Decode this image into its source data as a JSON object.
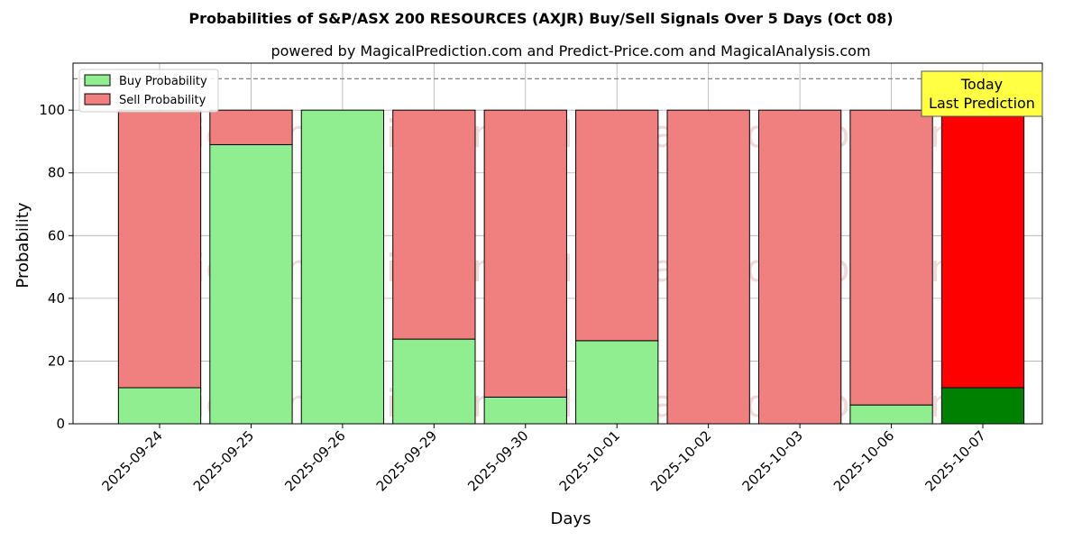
{
  "chart_data": {
    "type": "bar",
    "stacked": true,
    "title": "Probabilities of S&P/ASX 200 RESOURCES (AXJR) Buy/Sell Signals Over 5 Days (Oct 08)",
    "subtitle": "powered by MagicalPrediction.com and Predict-Price.com and MagicalAnalysis.com",
    "xlabel": "Days",
    "ylabel": "Probability",
    "ylim": [
      0,
      115
    ],
    "yticks": [
      0,
      20,
      40,
      60,
      80,
      100
    ],
    "grid": true,
    "legend_position": "top-left",
    "reference_line": 110,
    "categories": [
      "2025-09-24",
      "2025-09-25",
      "2025-09-26",
      "2025-09-29",
      "2025-09-30",
      "2025-10-01",
      "2025-10-02",
      "2025-10-03",
      "2025-10-06",
      "2025-10-07"
    ],
    "series": [
      {
        "name": "Buy Probability",
        "values": [
          11.5,
          89,
          100,
          27,
          8.5,
          26.5,
          0,
          0,
          6,
          11.5
        ],
        "color": "#90ee90",
        "highlight_color": "#008000"
      },
      {
        "name": "Sell Probability",
        "values": [
          88.5,
          11,
          0,
          73,
          91.5,
          73.5,
          100,
          100,
          94,
          88.5
        ],
        "color": "#f08080",
        "highlight_color": "#ff0000"
      }
    ],
    "highlight_index": 9,
    "annotation": {
      "lines": [
        "Today",
        "Last Prediction"
      ],
      "bg_color": "#ffff44"
    },
    "watermarks": [
      "MagicalAnalysis.com",
      "MagicalPrediction.com"
    ]
  }
}
